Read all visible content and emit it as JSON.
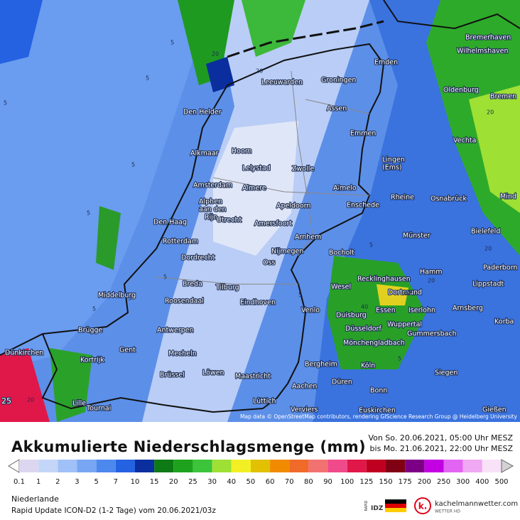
{
  "map": {
    "cities": [
      "Bremerhaven",
      "Wilhelmshaven",
      "Emden",
      "Leeuwarden",
      "Groningen",
      "Oldenburg",
      "Bremen",
      "Den Helder",
      "Assen",
      "Emmen",
      "Vechta",
      "Alkmaar",
      "Hoorn",
      "Lingen",
      "(Ems)",
      "Lelystad",
      "Zwolle",
      "Amsterdam",
      "Almere",
      "Almelo",
      "Rheine",
      "Osnabrück",
      "Mind",
      "Alphen",
      "aan den",
      "Rijn",
      "Apeldoorn",
      "Enschede",
      "Den Haag",
      "Utrecht",
      "Amersfoort",
      "Bielefeld",
      "Arnhem",
      "Münster",
      "Rotterdam",
      "Bocholt",
      "Nijmegen",
      "Dordrecht",
      "Oss",
      "Recklinghausen",
      "Hamm",
      "Paderborn",
      "Lippstadt",
      "Middelburg",
      "Breda",
      "Tilburg",
      "Wesel",
      "Dortmund",
      "Roosendaal",
      "Eindhoven",
      "Venlo",
      "Essen",
      "Iserlohn",
      "Arnsberg",
      "Duisburg",
      "Wuppertal",
      "Korba",
      "Antwerpen",
      "Düsseldorf",
      "Brügge",
      "Mönchengladbach",
      "Gummersbach",
      "Dünkirchen",
      "Gent",
      "Mecheln",
      "Bergheim",
      "Köln",
      "Siegen",
      "Kortrijk",
      "Brüssel",
      "Löwen",
      "Maastricht",
      "Düren",
      "Aachen",
      "Bonn",
      "Lille",
      "Tournai",
      "Lüttich",
      "Gießen",
      "Verviers",
      "Euskirchen"
    ],
    "contour_labels": [
      "5",
      "20",
      "5",
      "20",
      "5",
      "5",
      "5",
      "5",
      "20",
      "5",
      "5",
      "20",
      "5",
      "5",
      "20",
      "40",
      "5",
      "20",
      "5",
      "20"
    ],
    "corner_label": "25",
    "credit": "Map data © OpenStreetMap contributors, rendering GIScience Research Group @ Heidelberg University"
  },
  "header": {
    "title": "Akkumulierte Niederschlagsmenge (mm)",
    "period_from": "Von So. 20.06.2021, 05:00 Uhr MESZ",
    "period_to": "bis Mo. 21.06.2021, 22:00 Uhr MESZ"
  },
  "legend": {
    "values": [
      0.1,
      1,
      2,
      3,
      5,
      7,
      10,
      15,
      20,
      25,
      30,
      40,
      50,
      60,
      70,
      80,
      90,
      100,
      125,
      150,
      175,
      200,
      250,
      300,
      400,
      500
    ],
    "colors": [
      "#dcd6f0",
      "#c4d6f8",
      "#a0c0f8",
      "#78a6f2",
      "#4c88ee",
      "#2462e2",
      "#0a2e9e",
      "#0e7a16",
      "#1ea21e",
      "#3cc43a",
      "#9ee034",
      "#f2f024",
      "#e2c002",
      "#f28a00",
      "#f06a2a",
      "#f27272",
      "#f04a8a",
      "#e0184a",
      "#c00020",
      "#800014",
      "#7c0086",
      "#c200e2",
      "#e264f2",
      "#f0a8f2",
      "#f8e2f8",
      "#d2d2d2"
    ]
  },
  "footer": {
    "region": "Niederlande",
    "model": "Rapid Update ICON-D2 (1-2 Tage) vom 20.06.2021/03z",
    "rapid": "RAPID",
    "idz": "IDZ",
    "logo_letter": "k.",
    "site": "kachelmannwetter.com",
    "site_sub": "WETTER HD"
  }
}
